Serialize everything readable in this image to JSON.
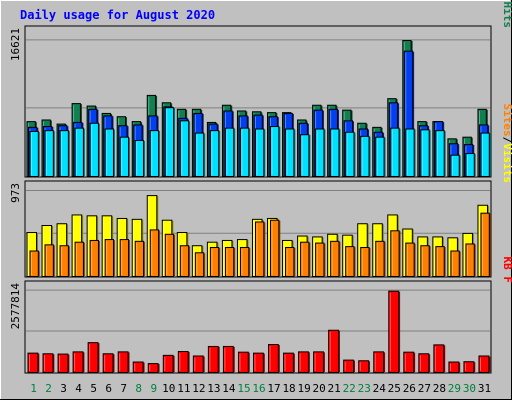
{
  "chart_data": {
    "type": "bar",
    "title": "Daily usage for August 2020",
    "x_labels": [
      "1",
      "2",
      "3",
      "4",
      "5",
      "6",
      "7",
      "8",
      "9",
      "10",
      "11",
      "12",
      "13",
      "14",
      "15",
      "16",
      "17",
      "18",
      "19",
      "20",
      "21",
      "22",
      "23",
      "24",
      "25",
      "26",
      "27",
      "28",
      "29",
      "30",
      "31"
    ],
    "weekend_days": [
      1,
      2,
      8,
      9,
      15,
      16,
      22,
      23,
      29,
      30
    ],
    "panels": [
      {
        "id": "hits",
        "ymax": 16621,
        "ymax_label": "16621",
        "legend": [
          "Pages",
          "/",
          "Files",
          "/",
          "Hits"
        ],
        "series": [
          {
            "name": "Hits",
            "color": "#108050",
            "values": [
              6700,
              6900,
              6400,
              8900,
              8600,
              7700,
              7300,
              6700,
              9900,
              9000,
              8200,
              8200,
              6600,
              8700,
              8000,
              7900,
              7800,
              7800,
              6900,
              8700,
              8700,
              8100,
              6500,
              6000,
              9500,
              16600,
              6700,
              6700,
              4600,
              4800,
              8200
            ]
          },
          {
            "name": "Files",
            "color": "#0040f0",
            "values": [
              6000,
              6100,
              6200,
              6600,
              8200,
              7400,
              6200,
              6300,
              7400,
              8500,
              7100,
              7700,
              6400,
              8000,
              7400,
              7500,
              7300,
              7700,
              6500,
              8100,
              8200,
              6800,
              5800,
              5400,
              9000,
              15300,
              6200,
              6700,
              4000,
              3900,
              6300
            ]
          },
          {
            "name": "Pages",
            "color": "#00e0ff",
            "values": [
              5500,
              5600,
              5600,
              5900,
              6500,
              5800,
              4800,
              4400,
              5600,
              8400,
              6800,
              5300,
              5600,
              5900,
              5900,
              5800,
              6100,
              5800,
              5100,
              5800,
              5800,
              5400,
              4900,
              4800,
              5900,
              5800,
              5700,
              5600,
              2600,
              2800,
              5300
            ]
          }
        ]
      },
      {
        "id": "visits",
        "ymax": 973,
        "ymax_label": "973",
        "legend": [
          "Sites",
          "/",
          "Visits"
        ],
        "series": [
          {
            "name": "Visits",
            "color": "#ffff00",
            "values": [
              500,
              580,
              600,
              700,
              690,
              690,
              660,
              650,
              920,
              640,
              500,
              350,
              390,
              410,
              420,
              650,
              660,
              410,
              460,
              450,
              480,
              470,
              600,
              600,
              700,
              540,
              450,
              450,
              440,
              490,
              810
            ]
          },
          {
            "name": "Sites",
            "color": "#ff8000",
            "values": [
              290,
              360,
              350,
              390,
              410,
              420,
              420,
              400,
              530,
              480,
              350,
              270,
              330,
              330,
              330,
              620,
              640,
              330,
              390,
              380,
              400,
              340,
              330,
              400,
              520,
              380,
              350,
              340,
              290,
              370,
              720
            ]
          }
        ]
      },
      {
        "id": "kbytes",
        "ymax": 2577814,
        "ymax_label": "2577814",
        "legend": [
          "KB",
          "F"
        ],
        "series": [
          {
            "name": "KB F",
            "color": "#ff0000",
            "values": [
              610000,
              590000,
              580000,
              650000,
              940000,
              590000,
              650000,
              330000,
              280000,
              540000,
              660000,
              520000,
              820000,
              820000,
              640000,
              610000,
              880000,
              610000,
              650000,
              650000,
              1330000,
              390000,
              370000,
              650000,
              2560000,
              640000,
              590000,
              870000,
              330000,
              340000,
              520000
            ]
          }
        ]
      }
    ]
  }
}
